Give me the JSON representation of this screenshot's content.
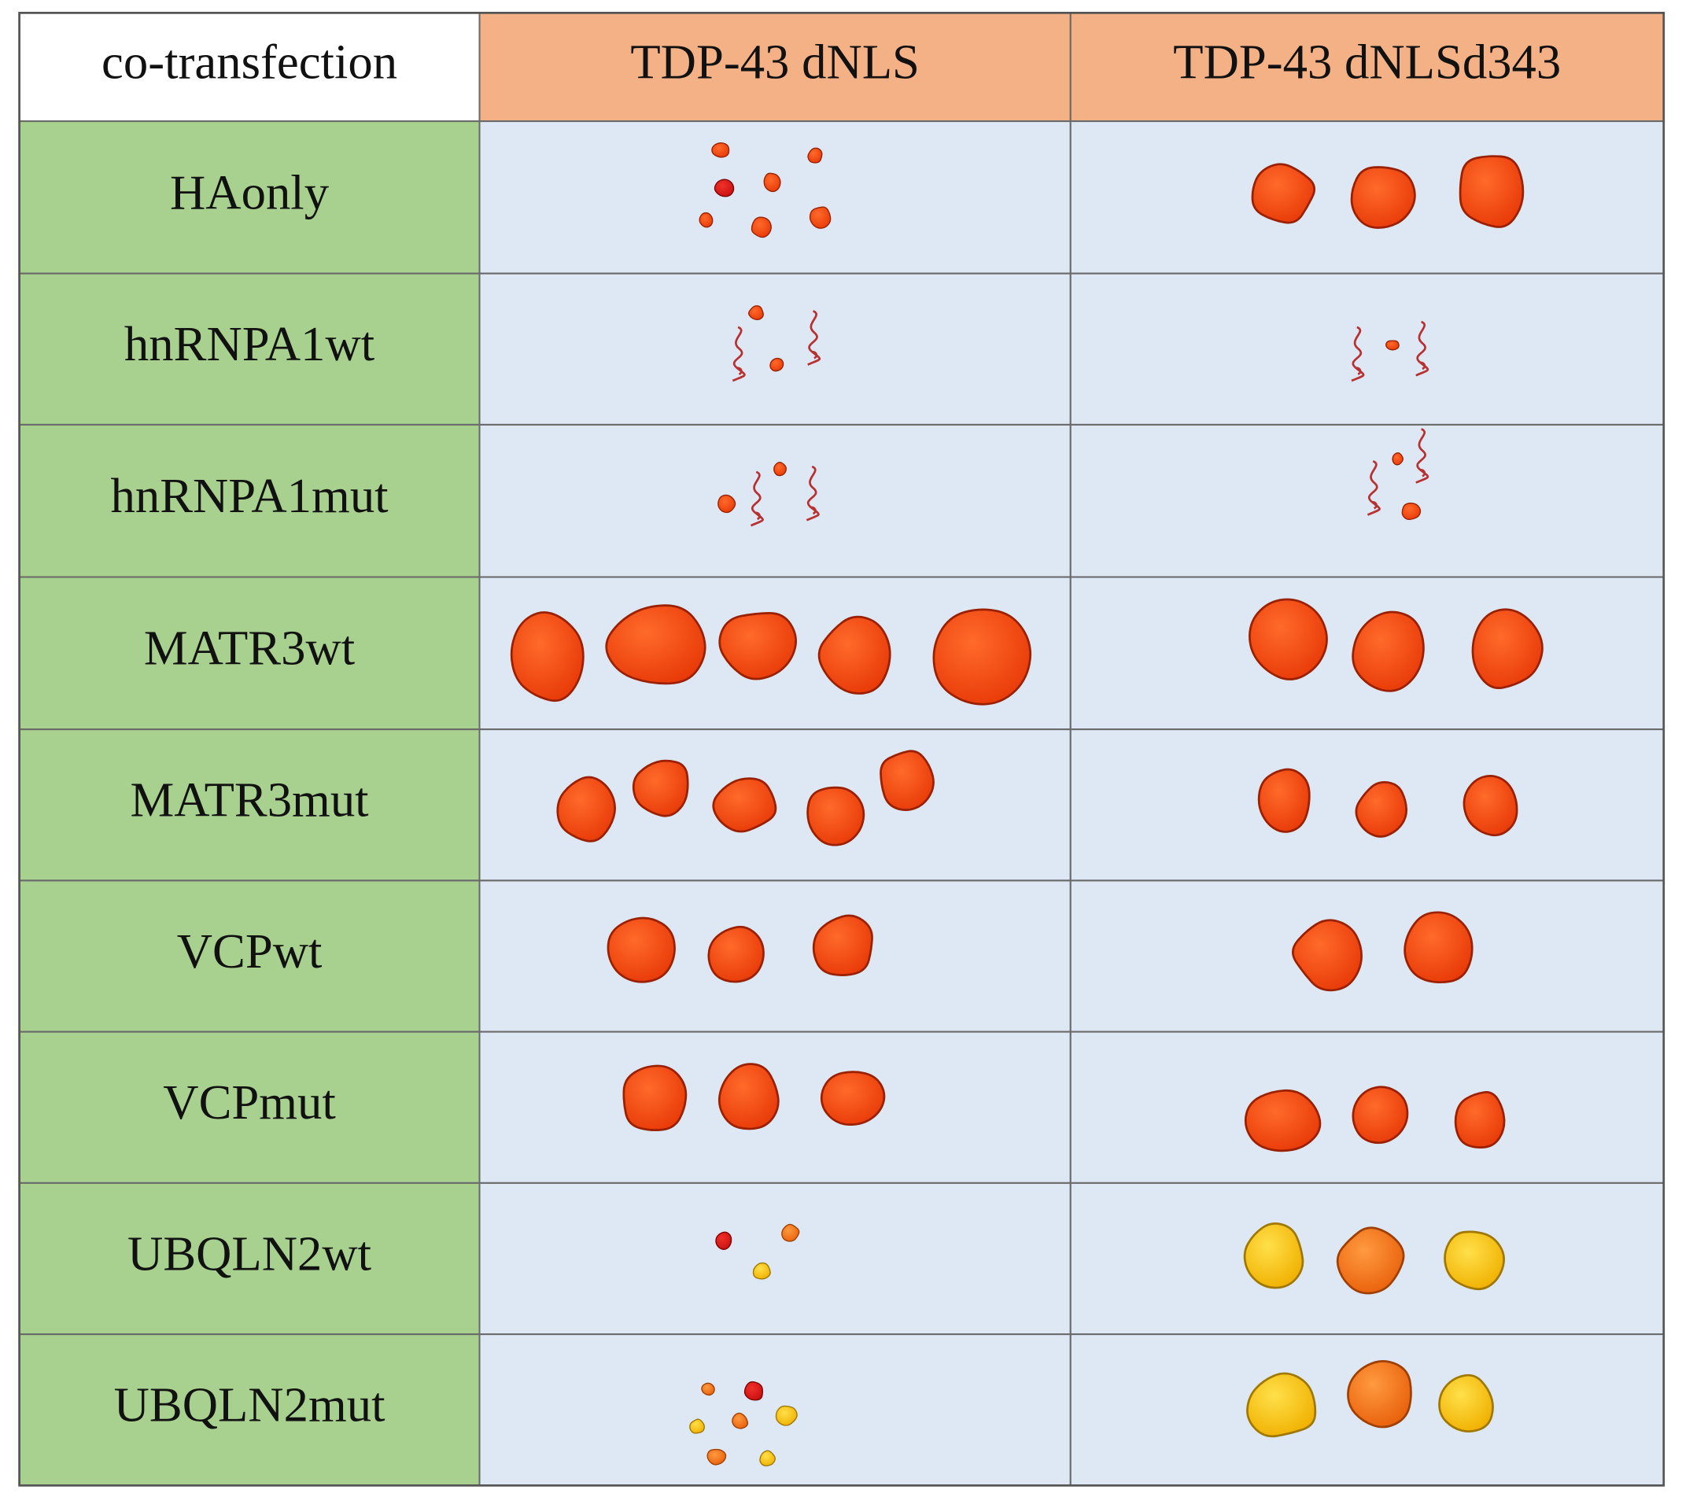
{
  "table": {
    "header": [
      "co-transfection",
      "TDP-43 dNLS",
      "TDP-43 dNLSd343"
    ],
    "rows": [
      "HAonly",
      "hnRNPA1wt",
      "hnRNPA1mut",
      "MATR3wt",
      "MATR3mut",
      "VCPwt",
      "VCPmut",
      "UBQLN2wt",
      "UBQLN2mut"
    ]
  }
}
